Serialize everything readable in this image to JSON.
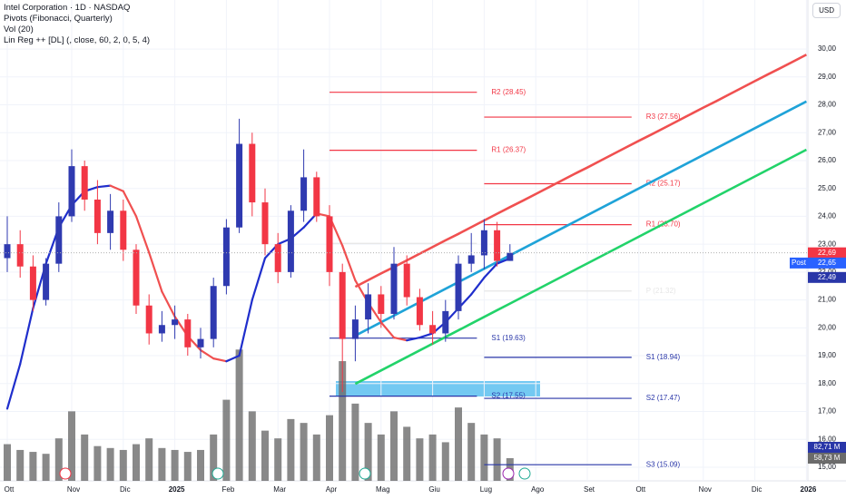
{
  "chart_data": {
    "type": "candlestick",
    "title": "Intel Corporation · 1D · NASDAQ",
    "indicators": [
      "Pivots (Fibonacci, Quarterly)",
      "Vol (20)",
      "Lin Reg ++ [DL] (, close, 60, 2, 0, 5, 4)"
    ],
    "currency": "USD",
    "categories": [
      "Ott",
      null,
      null,
      null,
      null,
      "Nov",
      null,
      null,
      null,
      "Dic",
      null,
      null,
      null,
      "2025",
      null,
      null,
      null,
      "Feb",
      null,
      null,
      null,
      "Mar",
      null,
      null,
      null,
      "Apr",
      null,
      null,
      null,
      "Mag",
      null,
      null,
      null,
      "Giu",
      null,
      null,
      null,
      "Lug",
      null,
      null,
      null,
      "Ago",
      null,
      null,
      null,
      "Set",
      null,
      null,
      null,
      "Ott",
      null,
      null,
      null,
      null,
      "Nov",
      null,
      null,
      null,
      "Dic",
      null,
      null,
      null,
      "2026"
    ],
    "open": [
      22.5,
      23.0,
      22.2,
      21.0,
      22.3,
      24.0,
      25.8,
      24.6,
      23.4,
      24.2,
      22.8,
      20.8,
      19.8,
      20.1,
      20.3,
      19.3,
      19.6,
      21.5,
      23.6,
      26.6,
      24.5,
      23.0,
      22.0,
      24.2,
      25.4,
      24.0,
      22.0,
      19.6,
      20.3,
      21.2,
      20.5,
      22.3,
      21.1,
      20.1,
      19.8,
      20.6,
      22.3,
      22.6,
      23.5,
      22.4,
      null,
      null,
      null,
      null,
      null,
      null,
      null,
      null,
      null,
      null,
      null,
      null,
      null,
      null,
      null,
      null,
      null,
      null,
      null,
      null,
      null,
      null,
      null
    ],
    "high": [
      24.0,
      23.5,
      22.6,
      22.5,
      24.5,
      26.4,
      26.0,
      25.3,
      24.8,
      24.6,
      23.0,
      21.2,
      20.6,
      20.8,
      20.5,
      20.0,
      21.8,
      23.9,
      27.5,
      27.0,
      25.0,
      23.4,
      24.4,
      26.4,
      25.6,
      24.4,
      22.3,
      20.8,
      21.6,
      21.5,
      22.9,
      22.6,
      21.4,
      20.6,
      21.0,
      22.6,
      23.4,
      23.9,
      23.8,
      23.0,
      null,
      null,
      null,
      null,
      null,
      null,
      null,
      null,
      null,
      null,
      null,
      null,
      null,
      null,
      null,
      null,
      null,
      null,
      null,
      null,
      null,
      null,
      null
    ],
    "low": [
      22.0,
      21.8,
      20.6,
      20.8,
      22.0,
      23.8,
      24.2,
      23.0,
      22.8,
      22.4,
      20.5,
      19.4,
      19.5,
      19.6,
      19.0,
      18.9,
      19.3,
      21.2,
      23.4,
      24.0,
      22.6,
      21.6,
      21.8,
      23.8,
      23.8,
      21.5,
      17.7,
      18.8,
      19.8,
      20.0,
      20.3,
      20.8,
      19.9,
      19.4,
      19.5,
      20.3,
      22.0,
      22.1,
      22.2,
      22.4,
      null,
      null,
      null,
      null,
      null,
      null,
      null,
      null,
      null,
      null,
      null,
      null,
      null,
      null,
      null,
      null,
      null,
      null,
      null,
      null,
      null,
      null,
      null
    ],
    "close": [
      23.0,
      22.2,
      21.0,
      22.3,
      24.0,
      25.8,
      24.6,
      23.4,
      24.2,
      22.8,
      20.8,
      19.8,
      20.1,
      20.3,
      19.3,
      19.6,
      21.5,
      23.6,
      26.6,
      24.5,
      23.0,
      22.0,
      24.2,
      25.4,
      24.0,
      22.0,
      19.6,
      20.3,
      21.2,
      20.5,
      22.3,
      21.1,
      20.1,
      19.8,
      20.6,
      22.3,
      22.6,
      23.5,
      22.4,
      22.69,
      null,
      null,
      null,
      null,
      null,
      null,
      null,
      null,
      null,
      null,
      null,
      null,
      null,
      null,
      null,
      null,
      null,
      null,
      null,
      null,
      null,
      null,
      null
    ],
    "up_color": "#2f3ab0",
    "down_color": "#f23645",
    "volume": [
      95,
      80,
      75,
      70,
      110,
      180,
      120,
      90,
      85,
      80,
      95,
      110,
      85,
      80,
      75,
      80,
      120,
      210,
      340,
      180,
      130,
      110,
      160,
      150,
      120,
      170,
      310,
      200,
      150,
      120,
      180,
      140,
      110,
      120,
      100,
      190,
      150,
      120,
      110,
      58.73,
      null,
      null,
      null,
      null,
      null,
      null,
      null,
      null,
      null,
      null,
      null,
      null,
      null,
      null,
      null,
      null,
      null,
      null,
      null,
      null,
      null,
      null,
      null
    ],
    "volume_color": "#6b6b6b",
    "y2lim": [
      0,
      1245
    ],
    "volume_tags": {
      "values": [
        82.71,
        58.73
      ],
      "value_labels": [
        "82,71 M",
        "58,73 M"
      ],
      "colors": [
        "#2936a8",
        "#6b6b6b"
      ]
    },
    "ma": {
      "values": [
        17.1,
        18.7,
        20.7,
        22.3,
        23.6,
        24.4,
        24.9,
        25.05,
        25.1,
        24.9,
        24.0,
        22.7,
        21.3,
        20.4,
        19.7,
        19.2,
        18.9,
        18.8,
        19.0,
        21.0,
        22.5,
        23.0,
        23.2,
        23.6,
        24.1,
        24.0,
        22.95,
        21.7,
        20.9,
        20.2,
        19.65,
        19.55,
        19.65,
        19.8,
        20.2,
        20.7,
        21.2,
        21.8,
        22.3,
        22.49,
        null,
        null,
        null,
        null,
        null,
        null,
        null,
        null,
        null,
        null,
        null,
        null,
        null,
        null,
        null,
        null,
        null,
        null,
        null,
        null,
        null,
        null,
        null
      ],
      "rising_color": "#1f2ecc",
      "falling_color": "#f05050"
    },
    "channels": [
      {
        "color": "#f05050",
        "values": [
          null,
          null,
          null,
          null,
          null,
          null,
          null,
          null,
          null,
          null,
          null,
          null,
          null,
          null,
          null,
          null,
          null,
          null,
          null,
          null,
          null,
          null,
          null,
          null,
          null,
          null,
          null,
          21.47,
          21.71,
          21.95,
          22.18,
          22.42,
          22.66,
          22.9,
          23.14,
          23.37,
          23.61,
          23.85,
          24.09,
          24.33,
          24.56,
          24.8,
          25.04,
          25.28,
          25.52,
          25.75,
          25.99,
          26.23,
          26.47,
          26.71,
          26.94,
          27.18,
          27.42,
          27.66,
          27.9,
          28.13,
          28.37,
          28.61,
          28.85,
          29.09,
          29.32,
          29.56,
          29.8
        ]
      },
      {
        "color": "#1fa3d8",
        "values": [
          null,
          null,
          null,
          null,
          null,
          null,
          null,
          null,
          null,
          null,
          null,
          null,
          null,
          null,
          null,
          null,
          null,
          null,
          null,
          null,
          null,
          null,
          null,
          null,
          null,
          null,
          null,
          19.72,
          19.96,
          20.2,
          20.44,
          20.68,
          20.92,
          21.16,
          21.4,
          21.64,
          21.88,
          22.12,
          22.36,
          22.6,
          22.84,
          23.08,
          23.32,
          23.56,
          23.8,
          24.04,
          24.28,
          24.52,
          24.76,
          25.0,
          25.24,
          25.48,
          25.72,
          25.96,
          26.2,
          26.44,
          26.68,
          26.92,
          27.16,
          27.4,
          27.64,
          27.88,
          28.12
        ]
      },
      {
        "color": "#22d36a",
        "values": [
          null,
          null,
          null,
          null,
          null,
          null,
          null,
          null,
          null,
          null,
          null,
          null,
          null,
          null,
          null,
          null,
          null,
          null,
          null,
          null,
          null,
          null,
          null,
          null,
          null,
          null,
          null,
          17.99,
          18.23,
          18.47,
          18.71,
          18.95,
          19.19,
          19.43,
          19.67,
          19.91,
          20.15,
          20.39,
          20.63,
          20.87,
          21.11,
          21.35,
          21.59,
          21.83,
          22.07,
          22.31,
          22.55,
          22.79,
          23.03,
          23.27,
          23.51,
          23.75,
          23.99,
          24.23,
          24.47,
          24.71,
          24.95,
          25.19,
          25.43,
          25.67,
          25.91,
          26.15,
          26.39
        ]
      }
    ],
    "pivots": [
      {
        "from": "Apr",
        "to": "Lug",
        "values": [
          28.45,
          26.37,
          23.03,
          19.63,
          17.55
        ],
        "value_labels": [
          "R2 (28.45)",
          "R1 (26.37)",
          null,
          "S1 (19.63)",
          "S2 (17.55)"
        ],
        "colors": [
          "#f23645",
          "#f23645",
          "#e6e6e6",
          "#2936a8",
          "#2936a8"
        ]
      },
      {
        "from": "Lug",
        "to": "Ott",
        "values": [
          27.56,
          25.17,
          23.7,
          21.32,
          18.94,
          17.47,
          15.09
        ],
        "value_labels": [
          "R3 (27.56)",
          "R2 (25.17)",
          "R1 (23.70)",
          "P (21.32)",
          "S1 (18.94)",
          "S2 (17.47)",
          "S3 (15.09)"
        ],
        "colors": [
          "#f23645",
          "#f23645",
          "#f23645",
          "#e6e6e6",
          "#2936a8",
          "#2936a8",
          "#2936a8"
        ]
      }
    ],
    "price_tags": {
      "values": [
        22.69,
        22.65,
        22.49
      ],
      "value_labels": [
        "22,69",
        "22,65",
        "22,49"
      ],
      "colors": [
        "#f23645",
        "#2962ff",
        "#2936a8"
      ],
      "post_label": "Post"
    },
    "ylim": [
      14.51,
      31.76
    ],
    "yticks": [
      {
        "value": 15,
        "label": "15,00"
      },
      {
        "value": 16,
        "label": "16,00"
      },
      {
        "value": 17,
        "label": "17,00"
      },
      {
        "value": 18,
        "label": "18,00"
      },
      {
        "value": 19,
        "label": "19,00"
      },
      {
        "value": 20,
        "label": "20,00"
      },
      {
        "value": 21,
        "label": "21,00"
      },
      {
        "value": 22,
        "label": "22,00"
      },
      {
        "value": 23,
        "label": "23,00"
      },
      {
        "value": 24,
        "label": "24,00"
      },
      {
        "value": 25,
        "label": "25,00"
      },
      {
        "value": 26,
        "label": "26,00"
      },
      {
        "value": 27,
        "label": "27,00"
      },
      {
        "value": 28,
        "label": "28,00"
      },
      {
        "value": 29,
        "label": "29,00"
      },
      {
        "value": 30,
        "label": "30,00"
      }
    ],
    "grid": true
  }
}
